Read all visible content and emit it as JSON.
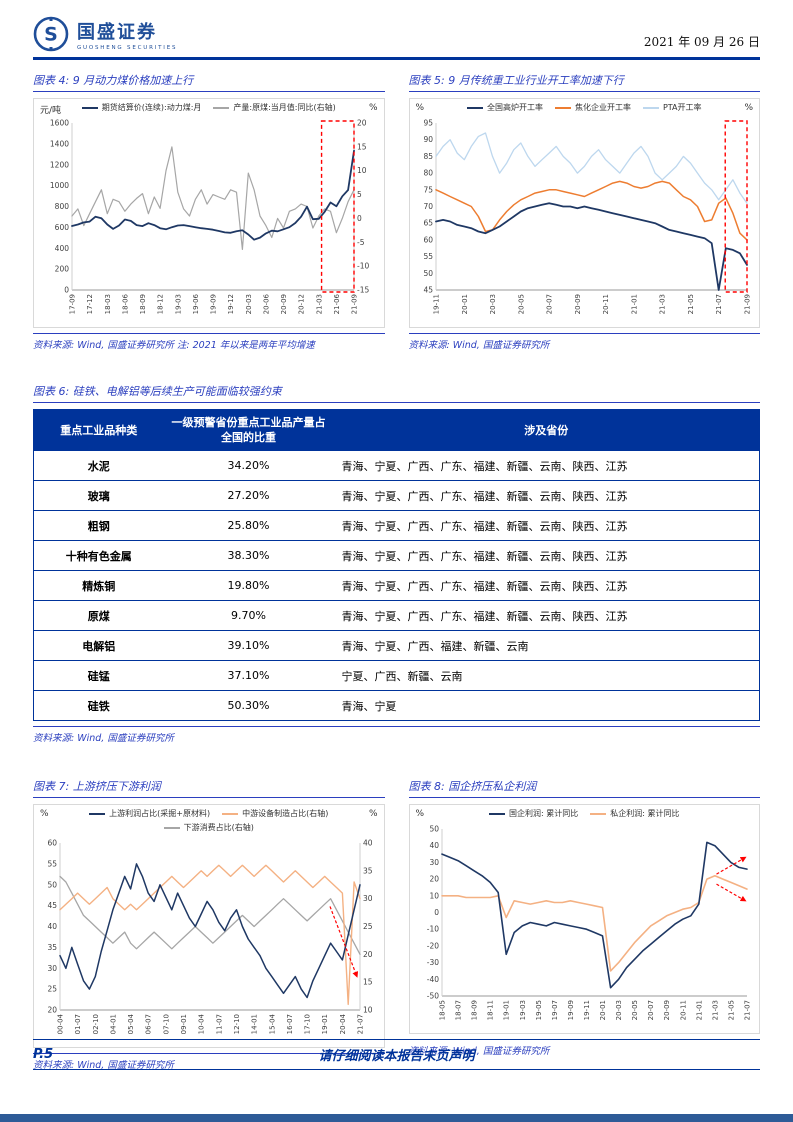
{
  "page": {
    "brand": {
      "name": "国盛证券",
      "sub": "GUOSHENG SECURITIES"
    },
    "date": "2021 年 09 月 26 日",
    "footer": {
      "page_no": "P.5",
      "disclaimer": "请仔细阅读本报告末页声明"
    }
  },
  "figures": {
    "fig4": {
      "title": "图表 4: 9 月动力煤价格加速上行",
      "source": "资料来源: Wind, 国盛证券研究所 注: 2021 年以来是两年平均增速"
    },
    "fig5": {
      "title": "图表 5: 9 月传统重工业行业开工率加速下行",
      "source": "资料来源: Wind, 国盛证券研究所"
    },
    "fig7": {
      "title": "图表 7: 上游挤压下游利润",
      "source": "资料来源: Wind, 国盛证券研究所"
    },
    "fig8": {
      "title": "图表 8: 国企挤压私企利润",
      "source": "资料来源: Wind, 国盛证券研究所"
    }
  },
  "table6": {
    "title": "图表 6: 硅铁、电解铝等后续生产可能面临较强约束",
    "source": "资料来源: Wind, 国盛证券研究所",
    "headers": [
      "重点工业品种类",
      "一级预警省份重点工业品产量占全国的比重",
      "涉及省份"
    ],
    "rows": [
      {
        "name": "水泥",
        "share": "34.20%",
        "provinces": "青海、宁夏、广西、广东、福建、新疆、云南、陕西、江苏"
      },
      {
        "name": "玻璃",
        "share": "27.20%",
        "provinces": "青海、宁夏、广西、广东、福建、新疆、云南、陕西、江苏"
      },
      {
        "name": "粗钢",
        "share": "25.80%",
        "provinces": "青海、宁夏、广西、广东、福建、新疆、云南、陕西、江苏"
      },
      {
        "name": "十种有色金属",
        "share": "38.30%",
        "provinces": "青海、宁夏、广西、广东、福建、新疆、云南、陕西、江苏"
      },
      {
        "name": "精炼铜",
        "share": "19.80%",
        "provinces": "青海、宁夏、广西、广东、福建、新疆、云南、陕西、江苏"
      },
      {
        "name": "原煤",
        "share": "9.70%",
        "provinces": "青海、宁夏、广西、广东、福建、新疆、云南、陕西、江苏"
      },
      {
        "name": "电解铝",
        "share": "39.10%",
        "provinces": "青海、宁夏、广西、福建、新疆、云南"
      },
      {
        "name": "硅锰",
        "share": "37.10%",
        "provinces": "宁夏、广西、新疆、云南"
      },
      {
        "name": "硅铁",
        "share": "50.30%",
        "provinces": "青海、宁夏"
      }
    ]
  },
  "chart_data": [
    {
      "id": "fig4",
      "type": "line",
      "title": "9 月动力煤价格加速上行",
      "unit_left": "元/吨",
      "unit_right": "%",
      "ylim_left": [
        0,
        1600
      ],
      "yticks_left": [
        0,
        200,
        400,
        600,
        800,
        1000,
        1200,
        1400,
        1600
      ],
      "ylim_right": [
        -15,
        20
      ],
      "yticks_right": [
        -15,
        -10,
        -5,
        0,
        5,
        10,
        15,
        20
      ],
      "x_labels": [
        "17-09",
        "17-12",
        "18-03",
        "18-06",
        "18-09",
        "18-12",
        "19-03",
        "19-06",
        "19-09",
        "19-12",
        "20-03",
        "20-06",
        "20-09",
        "20-12",
        "21-03",
        "21-06",
        "21-09"
      ],
      "highlight_box": [
        0.885,
        1.0
      ],
      "series": [
        {
          "name": "期货结算价(连续):动力煤:月",
          "axis": "left",
          "color": "#1F3864",
          "width": 1.8,
          "values": [
            613,
            628,
            648,
            655,
            702,
            688,
            628,
            585,
            618,
            675,
            662,
            622,
            612,
            640,
            622,
            592,
            582,
            602,
            618,
            622,
            612,
            602,
            592,
            585,
            578,
            565,
            552,
            548,
            562,
            572,
            532,
            482,
            502,
            542,
            568,
            562,
            582,
            602,
            642,
            702,
            798,
            678,
            682,
            748,
            838,
            802,
            898,
            958,
            1335
          ]
        },
        {
          "name": "产量:原煤:当月值:同比(右轴)",
          "axis": "right",
          "color": "#A6A6A6",
          "width": 1.2,
          "values": [
            0.5,
            2,
            -1.5,
            1,
            3.5,
            6,
            1,
            4,
            3.5,
            1.5,
            3,
            4.2,
            5.2,
            1,
            4.5,
            2.1,
            10,
            15,
            5.5,
            2,
            0.5,
            4,
            6,
            3,
            5,
            4.5,
            4,
            6,
            5.5,
            -6.5,
            9.5,
            6,
            0.5,
            -1.5,
            -4,
            0,
            -2,
            1.5,
            2,
            3,
            2.5,
            -2,
            0.5,
            2,
            1.5,
            -3,
            0,
            3.5,
            6
          ]
        }
      ]
    },
    {
      "id": "fig5",
      "type": "line",
      "title": "9 月传统重工业行业开工率加速下行",
      "unit_left": "%",
      "unit_right": "%",
      "ylim_left": [
        45,
        95
      ],
      "yticks_left": [
        45,
        50,
        55,
        60,
        65,
        70,
        75,
        80,
        85,
        90,
        95
      ],
      "x_labels": [
        "19-11",
        "20-01",
        "20-03",
        "20-05",
        "20-07",
        "20-09",
        "20-11",
        "21-01",
        "21-03",
        "21-05",
        "21-07",
        "21-09"
      ],
      "highlight_box": [
        0.93,
        1.0
      ],
      "series": [
        {
          "name": "全国高炉开工率",
          "axis": "left",
          "color": "#1F3864",
          "width": 1.8,
          "values": [
            65.5,
            66,
            65.5,
            64.5,
            64,
            63.5,
            62.5,
            62,
            63,
            64,
            65.5,
            67,
            68.5,
            69.5,
            70,
            70.5,
            71,
            70.5,
            70,
            70,
            69.5,
            70,
            69.5,
            69,
            68.5,
            68,
            67.5,
            67,
            66.5,
            66,
            65.5,
            65,
            64,
            63,
            62.5,
            62,
            61.5,
            61,
            60.5,
            59,
            45,
            57.5,
            57,
            56,
            52.5
          ]
        },
        {
          "name": "焦化企业开工率",
          "axis": "left",
          "color": "#ED7D31",
          "width": 1.5,
          "values": [
            75,
            74,
            73,
            72,
            71,
            70,
            67,
            62.5,
            63,
            66,
            68.5,
            70.5,
            72,
            73,
            74,
            74.5,
            75,
            75,
            74.5,
            74,
            73.5,
            73,
            74,
            75,
            76,
            77,
            77.5,
            77,
            76,
            75.5,
            76,
            77,
            77.5,
            77,
            75,
            73,
            72,
            70,
            65.5,
            66,
            71,
            72.5,
            68,
            62,
            60
          ]
        },
        {
          "name": "PTA开工率",
          "axis": "left",
          "color": "#BDD7EE",
          "width": 1.3,
          "values": [
            85,
            88,
            90,
            86,
            84,
            88,
            91,
            92,
            85,
            80,
            83,
            87,
            89,
            85,
            82,
            84,
            86,
            88,
            85,
            83,
            80,
            82,
            85,
            87,
            84,
            82,
            80,
            83,
            86,
            88,
            85,
            80,
            78,
            80,
            82,
            85,
            83,
            80,
            77,
            75,
            72,
            75,
            78,
            74,
            71
          ]
        }
      ]
    },
    {
      "id": "fig7",
      "type": "line",
      "title": "上游挤压下游利润",
      "unit_left": "%",
      "unit_right": "%",
      "ylim_left": [
        20,
        60
      ],
      "yticks_left": [
        20,
        25,
        30,
        35,
        40,
        45,
        50,
        55,
        60
      ],
      "ylim_right": [
        10,
        40
      ],
      "yticks_right": [
        10,
        15,
        20,
        25,
        30,
        35,
        40
      ],
      "x_labels": [
        "00-04",
        "01-07",
        "02-10",
        "04-01",
        "05-04",
        "06-07",
        "07-10",
        "09-01",
        "10-04",
        "11-07",
        "12-10",
        "14-01",
        "15-04",
        "16-07",
        "17-10",
        "19-01",
        "20-04",
        "21-07"
      ],
      "arrows": [
        {
          "x0": 0.9,
          "y0": 0.38,
          "x1": 0.99,
          "y1": 0.8
        }
      ],
      "series": [
        {
          "name": "上游利润占比(采掘+原材料)",
          "axis": "left",
          "color": "#1F3864",
          "width": 1.5,
          "values": [
            33,
            30,
            35,
            31,
            27,
            25,
            28,
            34,
            39,
            44,
            48,
            52,
            49,
            55,
            52,
            48,
            46,
            50,
            47,
            44,
            48,
            45,
            42,
            40,
            43,
            46,
            44,
            41,
            39,
            42,
            44,
            40,
            37,
            35,
            33,
            30,
            28,
            26,
            24,
            26,
            28,
            25,
            23,
            27,
            30,
            33,
            36,
            34,
            32,
            38,
            44,
            50
          ]
        },
        {
          "name": "中游设备制造占比(右轴)",
          "axis": "right",
          "color": "#F4B183",
          "width": 1.4,
          "values": [
            28,
            29,
            30,
            31,
            30,
            29,
            30,
            31,
            32,
            30,
            29,
            28,
            29,
            28,
            29,
            30,
            31,
            32,
            33,
            34,
            33,
            32,
            33,
            34,
            35,
            34,
            35,
            36,
            35,
            34,
            35,
            36,
            35,
            34,
            35,
            36,
            35,
            34,
            33,
            34,
            35,
            34,
            33,
            32,
            33,
            34,
            33,
            32,
            31,
            11,
            33,
            30
          ]
        },
        {
          "name": "下游消费占比(右轴)",
          "axis": "right",
          "color": "#A6A6A6",
          "width": 1.3,
          "values": [
            34,
            33,
            31,
            29,
            27,
            26,
            25,
            24,
            23,
            22,
            23,
            24,
            22,
            21,
            22,
            23,
            24,
            23,
            22,
            21,
            22,
            23,
            24,
            25,
            24,
            23,
            22,
            23,
            24,
            25,
            26,
            27,
            26,
            25,
            26,
            27,
            28,
            29,
            30,
            29,
            28,
            27,
            26,
            27,
            28,
            29,
            30,
            28,
            26,
            24,
            22,
            20
          ]
        }
      ]
    },
    {
      "id": "fig8",
      "type": "line",
      "title": "国企挤压私企利润",
      "unit_left": "%",
      "unit_right": "",
      "ylim_left": [
        -50,
        50
      ],
      "yticks_left": [
        -50,
        -40,
        -30,
        -20,
        -10,
        0,
        10,
        20,
        30,
        40,
        50
      ],
      "x_labels": [
        "18-05",
        "18-07",
        "18-09",
        "18-11",
        "19-01",
        "19-03",
        "19-05",
        "19-07",
        "19-09",
        "19-11",
        "20-01",
        "20-03",
        "20-05",
        "20-07",
        "20-09",
        "20-11",
        "21-01",
        "21-03",
        "21-05",
        "21-07"
      ],
      "arrows": [
        {
          "x0": 0.9,
          "y0": 0.27,
          "x1": 0.995,
          "y1": 0.17
        },
        {
          "x0": 0.9,
          "y0": 0.33,
          "x1": 0.995,
          "y1": 0.43
        }
      ],
      "series": [
        {
          "name": "国企利润: 累计同比",
          "axis": "left",
          "color": "#1F3864",
          "width": 1.6,
          "values": [
            35,
            33,
            31,
            28,
            25,
            22,
            18,
            12,
            -25,
            -12,
            -8,
            -6,
            -7,
            -8,
            -6,
            -7,
            -8,
            -9,
            -10,
            -12,
            -14,
            -45,
            -40,
            -33,
            -28,
            -23,
            -19,
            -15,
            -11,
            -7,
            -4,
            -2,
            5,
            42,
            40,
            35,
            30,
            27,
            26
          ]
        },
        {
          "name": "私企利润: 累计同比",
          "axis": "left",
          "color": "#F4B183",
          "width": 1.6,
          "values": [
            10,
            10,
            10,
            9,
            9,
            9,
            9,
            10,
            -3,
            7,
            6,
            5,
            6,
            7,
            6,
            6,
            7,
            6,
            5,
            4,
            3,
            -35,
            -30,
            -24,
            -18,
            -13,
            -8,
            -5,
            -2,
            0,
            2,
            3,
            6,
            20,
            22,
            20,
            18,
            16,
            14
          ]
        }
      ]
    }
  ]
}
